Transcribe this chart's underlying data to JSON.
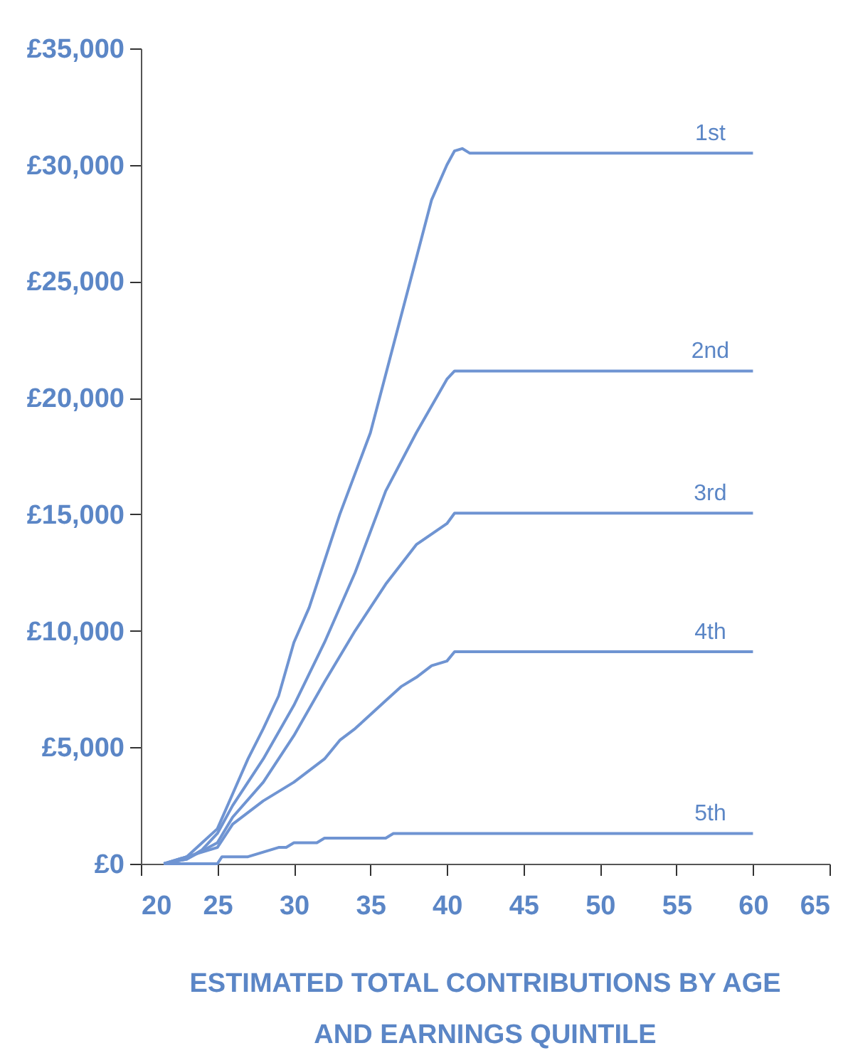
{
  "chart_data": {
    "type": "line",
    "title": "ESTIMATED TOTAL CONTRIBUTIONS BY AGE\nAND EARNINGS QUINTILE",
    "xlim": [
      20,
      65
    ],
    "xticks": [
      20,
      25,
      30,
      35,
      40,
      45,
      50,
      55,
      60,
      65
    ],
    "ylim": [
      0,
      35000
    ],
    "yticks": [
      {
        "value": 0,
        "label": "£0"
      },
      {
        "value": 5000,
        "label": "£5,000"
      },
      {
        "value": 10000,
        "label": "£10,000"
      },
      {
        "value": 15000,
        "label": "£15,000"
      },
      {
        "value": 20000,
        "label": "£20,000"
      },
      {
        "value": 25000,
        "label": "£25,000"
      },
      {
        "value": 30000,
        "label": "£30,000"
      },
      {
        "value": 35000,
        "label": "£35,000"
      }
    ],
    "grid": false,
    "marker": "none",
    "line_style": "solid",
    "series": [
      {
        "name": "1st",
        "color": "#6f94d2",
        "x": [
          21.5,
          23,
          24,
          25,
          26,
          27,
          28,
          29,
          30,
          31,
          32,
          33,
          35,
          37,
          38,
          39,
          40,
          40.5,
          41,
          41.5,
          60
        ],
        "values": [
          0,
          300,
          900,
          1500,
          3000,
          4500,
          5800,
          7200,
          9500,
          11000,
          13000,
          15000,
          18500,
          23500,
          26000,
          28500,
          30000,
          30600,
          30700,
          30500,
          30500
        ]
      },
      {
        "name": "2nd",
        "color": "#6f94d2",
        "x": [
          21.5,
          23,
          24,
          25,
          26,
          28,
          30,
          32,
          34,
          36,
          38,
          40,
          40.5,
          60
        ],
        "values": [
          0,
          200,
          600,
          1300,
          2500,
          4500,
          6800,
          9500,
          12500,
          16000,
          18500,
          20800,
          21150,
          21150
        ]
      },
      {
        "name": "3rd",
        "color": "#6f94d2",
        "x": [
          21.5,
          23,
          25,
          26,
          28,
          30,
          32,
          34,
          36,
          38,
          40,
          40.5,
          60
        ],
        "values": [
          0,
          200,
          900,
          2000,
          3500,
          5500,
          7800,
          10000,
          12000,
          13700,
          14600,
          15050,
          15050
        ]
      },
      {
        "name": "4th",
        "color": "#6f94d2",
        "x": [
          21.5,
          23,
          24,
          25,
          26,
          28,
          30,
          32,
          33,
          34,
          36,
          37,
          38,
          39,
          40,
          40.5,
          60
        ],
        "values": [
          0,
          300,
          500,
          700,
          1700,
          2700,
          3500,
          4500,
          5300,
          5800,
          7000,
          7600,
          8000,
          8500,
          8700,
          9100,
          9100
        ]
      },
      {
        "name": "5th",
        "color": "#6f94d2",
        "x": [
          21.5,
          25,
          25.3,
          27,
          28,
          29,
          29.5,
          30,
          31.5,
          32,
          36,
          36.5,
          60
        ],
        "values": [
          0,
          0,
          300,
          300,
          500,
          700,
          700,
          900,
          900,
          1100,
          1100,
          1300,
          1300
        ]
      }
    ]
  }
}
